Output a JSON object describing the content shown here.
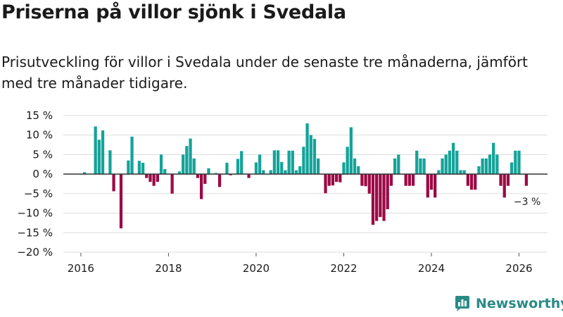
{
  "title": "Priserna på villor sjönk i Svedala",
  "subtitle": "Prisutveckling för villor i Svedala under de senaste tre månaderna, jämfört med tre månader tidigare.",
  "brand": {
    "name": "Newsworthy"
  },
  "colors": {
    "positive": "#14a39a",
    "negative": "#9b0a45",
    "grid": "#dcdcdc",
    "zero": "#333333",
    "text": "#1a1a1a"
  },
  "chart_data": {
    "type": "bar",
    "title": "Priserna på villor sjönk i Svedala",
    "xlabel": "",
    "ylabel": "",
    "x_start": 2016.0,
    "x_step": 0.08333,
    "xlim": [
      2015.6,
      2026.65
    ],
    "ylim": [
      -20,
      15
    ],
    "yticks": [
      15,
      10,
      5,
      0,
      -5,
      -10,
      -15,
      -20
    ],
    "ytick_labels": [
      "15 %",
      "10 %",
      "5 %",
      "0 %",
      "−5 %",
      "−10 %",
      "−15 %",
      "−20 %"
    ],
    "xticks": [
      2016,
      2018,
      2020,
      2022,
      2024,
      2026
    ],
    "xtick_labels": [
      "2016",
      "2018",
      "2020",
      "2022",
      "2024",
      "2026"
    ],
    "grid": true,
    "values": [
      0,
      0.5,
      0,
      0,
      12.2,
      8.8,
      11.2,
      0,
      6.1,
      -4.4,
      0,
      -13.9,
      0,
      3.5,
      9.6,
      0,
      3.4,
      2.9,
      -1,
      -2,
      -3,
      -2,
      5,
      1.3,
      0,
      -5,
      0,
      0.7,
      5,
      7.2,
      9.1,
      4,
      -1,
      -6.4,
      -2.5,
      1.5,
      0,
      0.3,
      -3.3,
      0,
      2.9,
      -0.3,
      0,
      3.9,
      5.9,
      0,
      -1,
      0,
      3,
      5,
      1,
      0,
      1,
      6.1,
      6.1,
      3.1,
      1,
      6,
      6,
      1,
      2,
      7,
      13,
      10,
      9,
      4,
      0,
      -4.9,
      -3,
      -2.9,
      -2,
      -2.1,
      3,
      7,
      12,
      4,
      2,
      -3,
      -3.1,
      -5,
      -13,
      -12,
      -11,
      -12,
      -9,
      -3,
      4,
      5,
      0,
      -3,
      -3,
      -3,
      6,
      4,
      4,
      -6,
      -4,
      -6,
      1,
      4,
      5,
      6,
      8,
      6,
      1,
      1,
      -3,
      -4,
      -4,
      2,
      4,
      4,
      5,
      8,
      5,
      -3,
      -6,
      -3,
      3,
      6,
      6,
      0,
      -3
    ],
    "annotation": {
      "text": "−3 %",
      "value": -3
    }
  }
}
